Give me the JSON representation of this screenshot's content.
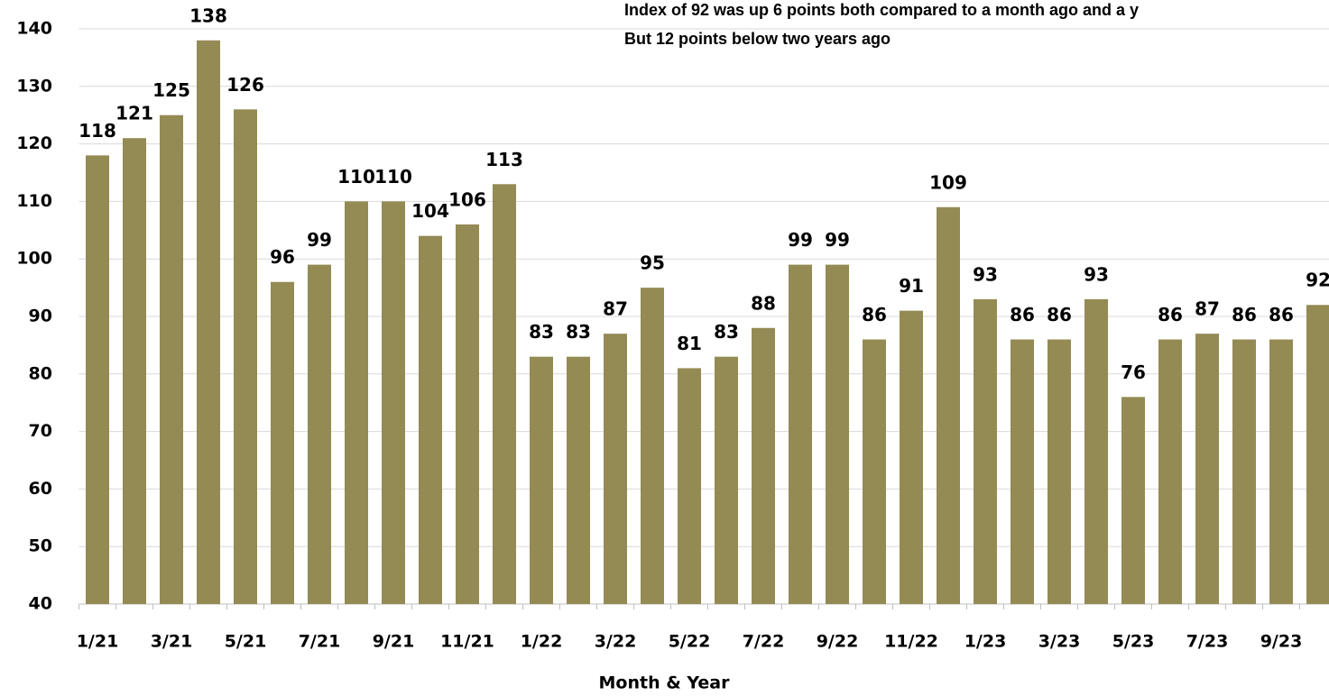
{
  "chart_data": {
    "type": "bar",
    "annotations": [
      "Index of 92 was up 6 points both compared to a month ago and a y",
      "But 12 points below two years ago"
    ],
    "x_label": "Month & Year",
    "categories": [
      "1/21",
      null,
      "3/21",
      null,
      "5/21",
      null,
      "7/21",
      null,
      "9/21",
      null,
      "11/21",
      null,
      "1/22",
      null,
      "3/22",
      null,
      "5/22",
      null,
      "7/22",
      null,
      "9/22",
      null,
      "11/22",
      null,
      "1/23",
      null,
      "3/23",
      null,
      "5/23",
      null,
      "7/23",
      null,
      "9/23",
      null
    ],
    "values": [
      118,
      121,
      125,
      138,
      126,
      96,
      99,
      110,
      110,
      104,
      106,
      113,
      83,
      83,
      87,
      95,
      81,
      83,
      88,
      99,
      99,
      86,
      91,
      109,
      93,
      86,
      86,
      93,
      76,
      86,
      87,
      86,
      86,
      92
    ],
    "color": "#948a54",
    "ylim": [
      40,
      140
    ],
    "yticks": [
      40,
      50,
      60,
      70,
      80,
      90,
      100,
      110,
      120,
      130,
      140
    ],
    "grid": true
  }
}
